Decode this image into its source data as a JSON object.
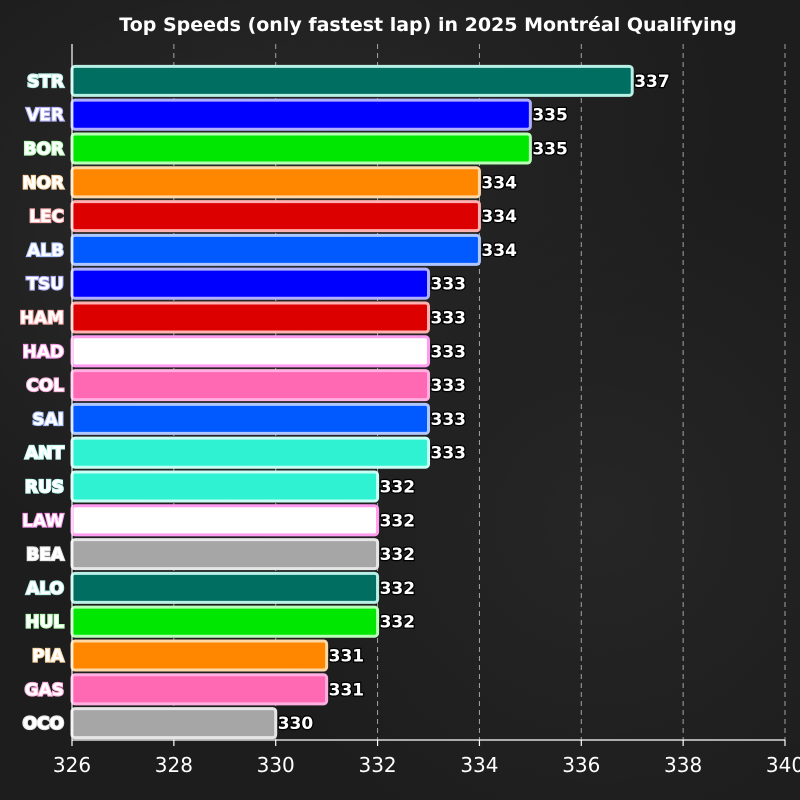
{
  "chart_data": {
    "type": "bar",
    "orientation": "horizontal",
    "title": "Top Speeds (only fastest lap) in 2025 Montréal Qualifying",
    "xlabel": "",
    "ylabel": "",
    "xlim": [
      326,
      340
    ],
    "xticks": [
      326,
      328,
      330,
      332,
      334,
      336,
      338,
      340
    ],
    "grid": "vertical dashed",
    "categories": [
      "STR",
      "VER",
      "BOR",
      "NOR",
      "LEC",
      "ALB",
      "TSU",
      "HAM",
      "HAD",
      "COL",
      "SAI",
      "ANT",
      "RUS",
      "LAW",
      "BEA",
      "ALO",
      "HUL",
      "PIA",
      "GAS",
      "OCO"
    ],
    "values": [
      337,
      335,
      335,
      334,
      334,
      334,
      333,
      333,
      333,
      333,
      333,
      333,
      332,
      332,
      332,
      332,
      332,
      331,
      331,
      330
    ],
    "colors": {
      "fill": [
        "#006f62",
        "#0000ff",
        "#00e701",
        "#ff8700",
        "#dc0000",
        "#005aff",
        "#0000ff",
        "#dc0000",
        "#ffffff",
        "#ff69b4",
        "#005aff",
        "#2ff2d2",
        "#2ff2d2",
        "#ffffff",
        "#a6a6a6",
        "#006f62",
        "#00e701",
        "#ff8700",
        "#ff69b4",
        "#a6a6a6"
      ],
      "edge": [
        "#b8f0e6",
        "#b0b0ff",
        "#b8ffb8",
        "#ffd8a8",
        "#ffb0b0",
        "#b0c8ff",
        "#b0b0ff",
        "#ffb0b0",
        "#ff9cf0",
        "#ffb0e0",
        "#b0c8ff",
        "#c8fff5",
        "#c8fff5",
        "#ff9cf0",
        "#e6e6e6",
        "#b8f0e6",
        "#b8ffb8",
        "#ffd8a8",
        "#ffb0e0",
        "#e6e6e6"
      ]
    }
  }
}
